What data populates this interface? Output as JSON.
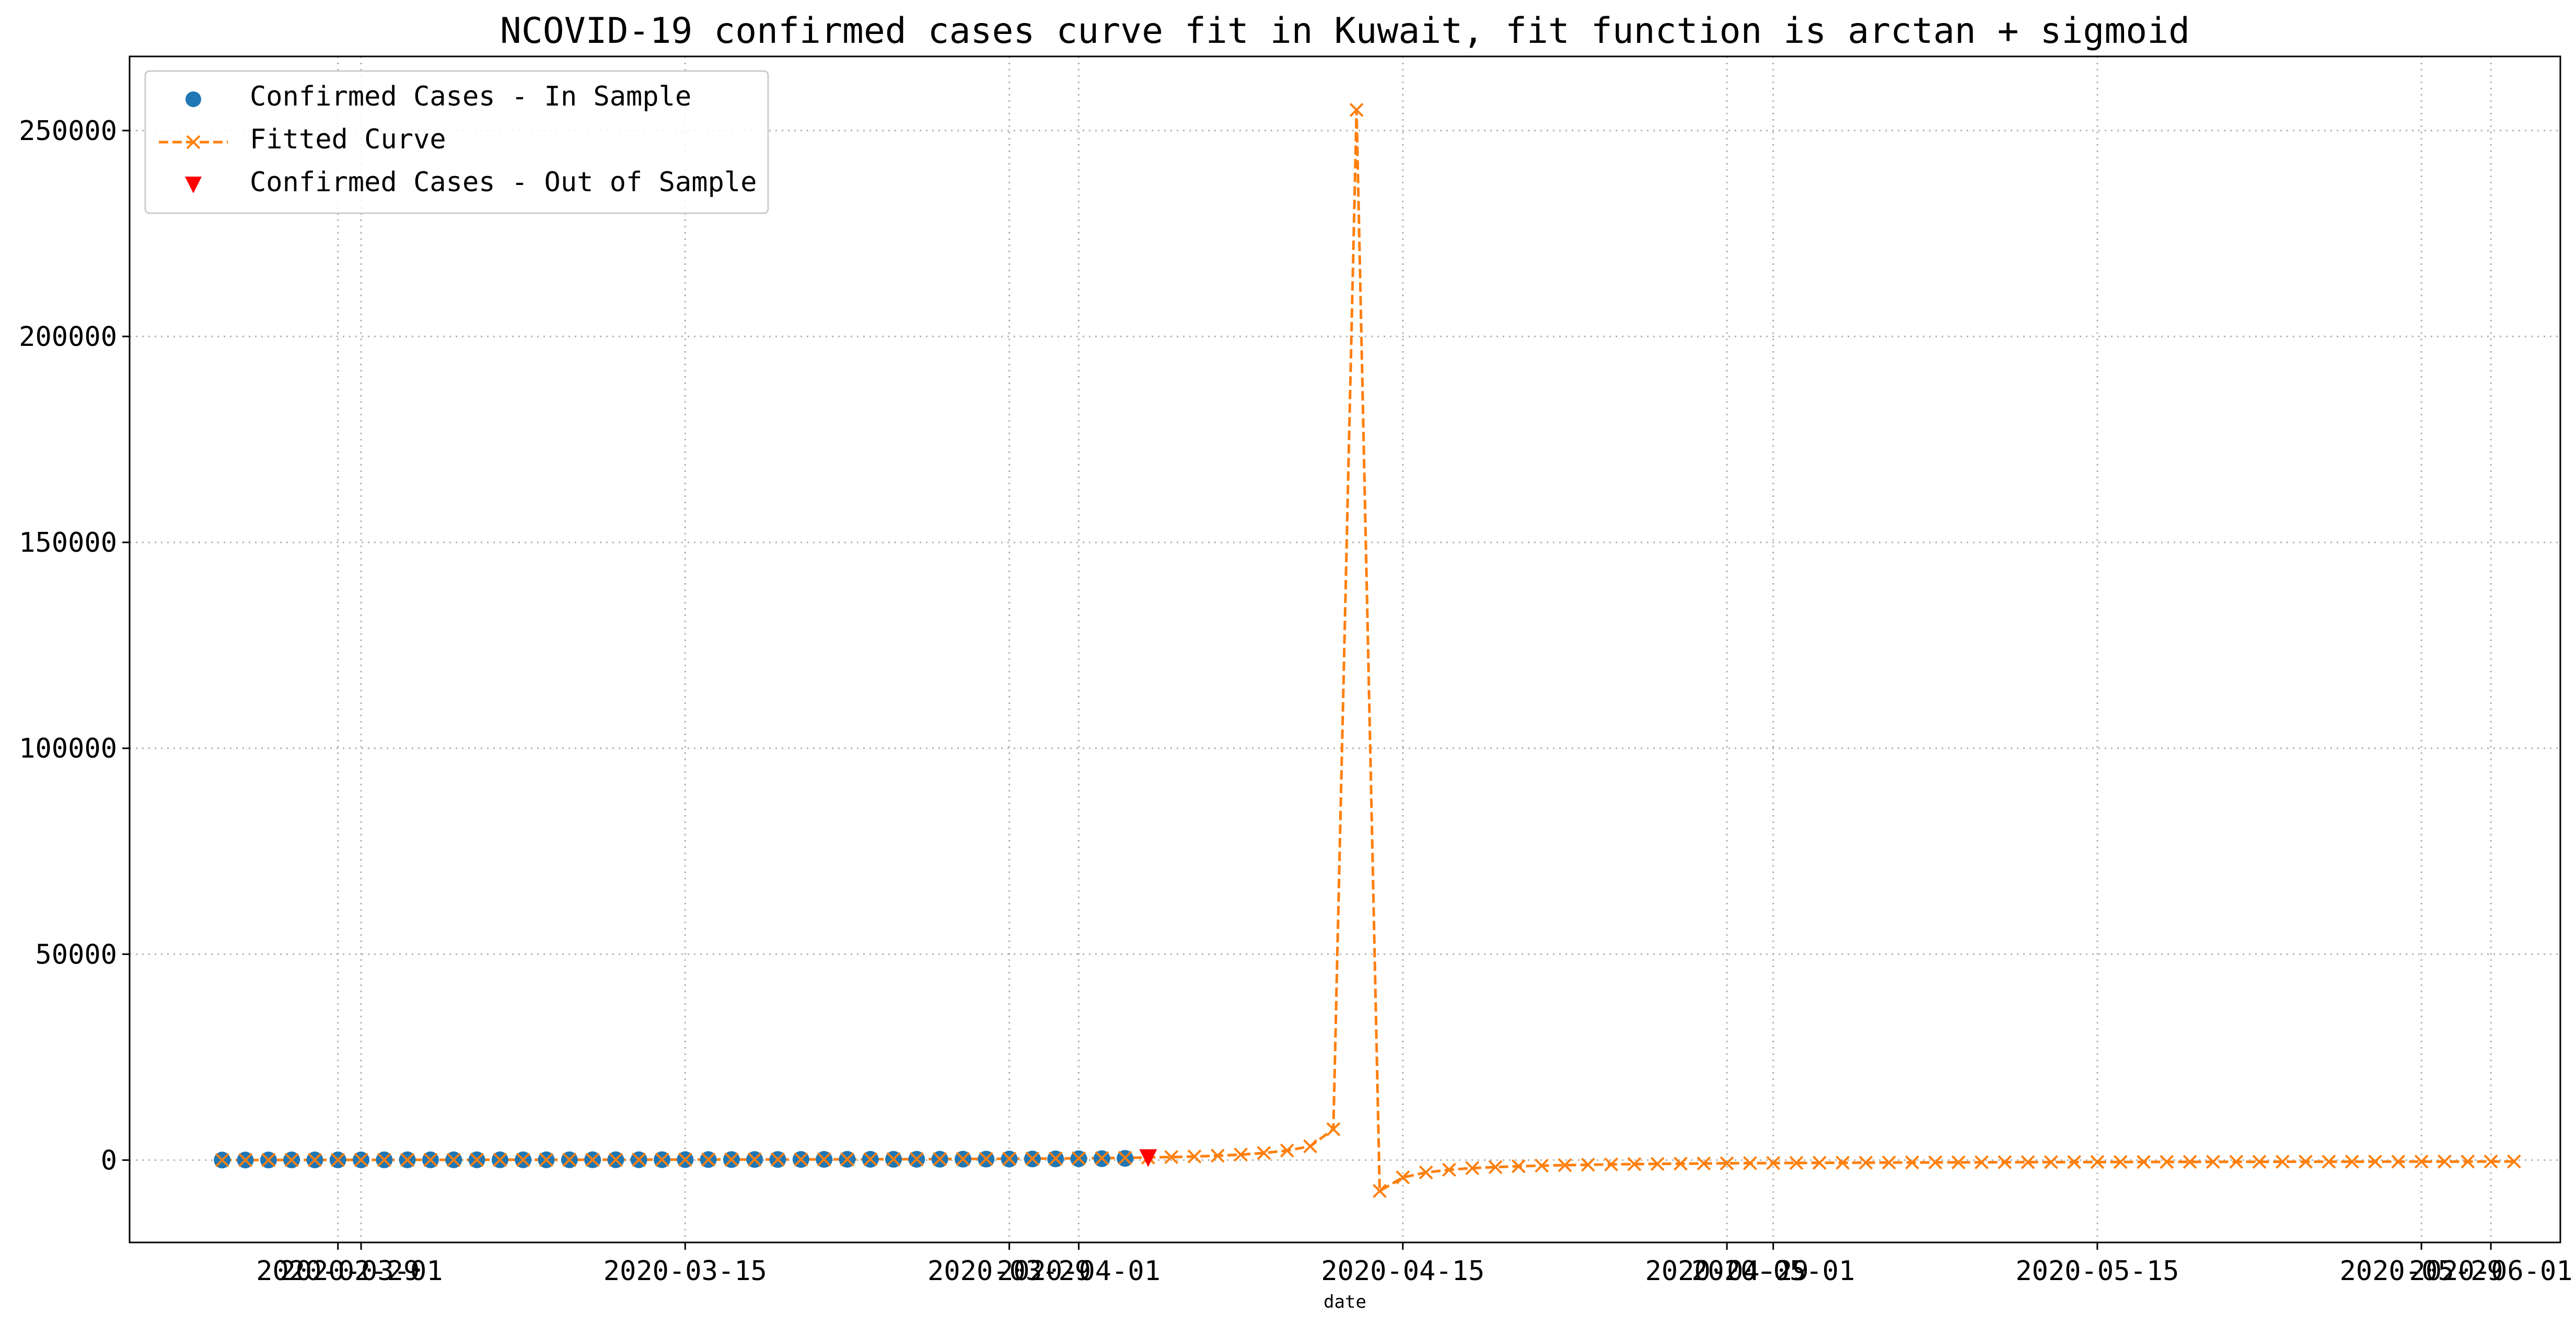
{
  "chart_data": {
    "type": "line",
    "title": "NCOVID-19 confirmed cases curve fit in Kuwait, fit function is arctan + sigmoid",
    "xlabel": "date",
    "ylabel": "",
    "ylim": [
      -20000,
      268000
    ],
    "xlim": [
      "2020-02-20",
      "2020-06-04"
    ],
    "grid": true,
    "legend_position": "upper-left",
    "yticks": [
      0,
      50000,
      100000,
      150000,
      200000,
      250000
    ],
    "ytick_labels": [
      "0",
      "50000",
      "100000",
      "150000",
      "200000",
      "250000"
    ],
    "xticks": [
      {
        "date": "2020-02-29",
        "label": "2020-02-29"
      },
      {
        "date": "2020-03-01",
        "label": "2020-03-01"
      },
      {
        "date": "2020-03-15",
        "label": "2020-03-15"
      },
      {
        "date": "2020-03-29",
        "label": "2020-03-29"
      },
      {
        "date": "2020-04-01",
        "label": "2020-04-01"
      },
      {
        "date": "2020-04-15",
        "label": "2020-04-15"
      },
      {
        "date": "2020-04-29",
        "label": "2020-04-29"
      },
      {
        "date": "2020-05-01",
        "label": "2020-05-01"
      },
      {
        "date": "2020-05-15",
        "label": "2020-05-15"
      },
      {
        "date": "2020-05-29",
        "label": "2020-05-29"
      },
      {
        "date": "2020-06-01",
        "label": "2020-06-01"
      }
    ],
    "series": [
      {
        "name": "Confirmed Cases - In Sample",
        "marker": "circle",
        "color": "#1f77b4",
        "x": [
          "2020-02-24",
          "2020-02-25",
          "2020-02-26",
          "2020-02-27",
          "2020-02-28",
          "2020-02-29",
          "2020-03-01",
          "2020-03-02",
          "2020-03-03",
          "2020-03-04",
          "2020-03-05",
          "2020-03-06",
          "2020-03-07",
          "2020-03-08",
          "2020-03-09",
          "2020-03-10",
          "2020-03-11",
          "2020-03-12",
          "2020-03-13",
          "2020-03-14",
          "2020-03-15",
          "2020-03-16",
          "2020-03-17",
          "2020-03-18",
          "2020-03-19",
          "2020-03-20",
          "2020-03-21",
          "2020-03-22",
          "2020-03-23",
          "2020-03-24",
          "2020-03-25",
          "2020-03-26",
          "2020-03-27",
          "2020-03-28",
          "2020-03-29",
          "2020-03-30",
          "2020-03-31",
          "2020-04-01",
          "2020-04-02",
          "2020-04-03"
        ],
        "y": [
          8,
          11,
          26,
          43,
          45,
          45,
          45,
          56,
          56,
          56,
          58,
          58,
          61,
          64,
          64,
          69,
          72,
          80,
          80,
          100,
          112,
          123,
          130,
          142,
          148,
          159,
          176,
          188,
          189,
          191,
          195,
          208,
          225,
          235,
          255,
          266,
          289,
          317,
          342,
          417
        ]
      },
      {
        "name": "Fitted Curve",
        "marker": "x",
        "line": "dashed",
        "color": "#ff7f0e",
        "x": [
          "2020-02-24",
          "2020-02-25",
          "2020-02-26",
          "2020-02-27",
          "2020-02-28",
          "2020-02-29",
          "2020-03-01",
          "2020-03-02",
          "2020-03-03",
          "2020-03-04",
          "2020-03-05",
          "2020-03-06",
          "2020-03-07",
          "2020-03-08",
          "2020-03-09",
          "2020-03-10",
          "2020-03-11",
          "2020-03-12",
          "2020-03-13",
          "2020-03-14",
          "2020-03-15",
          "2020-03-16",
          "2020-03-17",
          "2020-03-18",
          "2020-03-19",
          "2020-03-20",
          "2020-03-21",
          "2020-03-22",
          "2020-03-23",
          "2020-03-24",
          "2020-03-25",
          "2020-03-26",
          "2020-03-27",
          "2020-03-28",
          "2020-03-29",
          "2020-03-30",
          "2020-03-31",
          "2020-04-01",
          "2020-04-02",
          "2020-04-03",
          "2020-04-04",
          "2020-04-05",
          "2020-04-06",
          "2020-04-07",
          "2020-04-08",
          "2020-04-09",
          "2020-04-10",
          "2020-04-11",
          "2020-04-12",
          "2020-04-13",
          "2020-04-14",
          "2020-04-15",
          "2020-04-16",
          "2020-04-17",
          "2020-04-18",
          "2020-04-19",
          "2020-04-20",
          "2020-04-21",
          "2020-04-22",
          "2020-04-23",
          "2020-04-24",
          "2020-04-25",
          "2020-04-26",
          "2020-04-27",
          "2020-04-28",
          "2020-04-29",
          "2020-04-30",
          "2020-05-01",
          "2020-05-02",
          "2020-05-03",
          "2020-05-04",
          "2020-05-05",
          "2020-05-06",
          "2020-05-07",
          "2020-05-08",
          "2020-05-09",
          "2020-05-10",
          "2020-05-11",
          "2020-05-12",
          "2020-05-13",
          "2020-05-14",
          "2020-05-15",
          "2020-05-16",
          "2020-05-17",
          "2020-05-18",
          "2020-05-19",
          "2020-05-20",
          "2020-05-21",
          "2020-05-22",
          "2020-05-23",
          "2020-05-24",
          "2020-05-25",
          "2020-05-26",
          "2020-05-27",
          "2020-05-28",
          "2020-05-29",
          "2020-05-30",
          "2020-05-31",
          "2020-06-01",
          "2020-06-02"
        ],
        "y": [
          10,
          15,
          20,
          28,
          35,
          42,
          48,
          52,
          56,
          59,
          62,
          65,
          68,
          72,
          76,
          81,
          87,
          93,
          100,
          108,
          116,
          125,
          134,
          144,
          154,
          165,
          177,
          190,
          203,
          218,
          234,
          252,
          272,
          295,
          321,
          351,
          386,
          428,
          480,
          545,
          628,
          735,
          875,
          1065,
          1330,
          1720,
          2320,
          3350,
          7500,
          255000,
          -7500,
          -4200,
          -3000,
          -2350,
          -1950,
          -1700,
          -1500,
          -1350,
          -1230,
          -1130,
          -1050,
          -980,
          -920,
          -870,
          -825,
          -785,
          -750,
          -718,
          -690,
          -664,
          -640,
          -618,
          -598,
          -580,
          -563,
          -547,
          -532,
          -518,
          -505,
          -493,
          -481,
          -470,
          -460,
          -450,
          -441,
          -432,
          -424,
          -416,
          -408,
          -401,
          -394,
          -388,
          -382,
          -376,
          -370,
          -365,
          -360,
          -355,
          -350,
          -345
        ]
      },
      {
        "name": "Confirmed Cases - Out of Sample",
        "marker": "triangle-down",
        "color": "#ff0000",
        "x": [
          "2020-04-04"
        ],
        "y": [
          479
        ]
      }
    ]
  }
}
